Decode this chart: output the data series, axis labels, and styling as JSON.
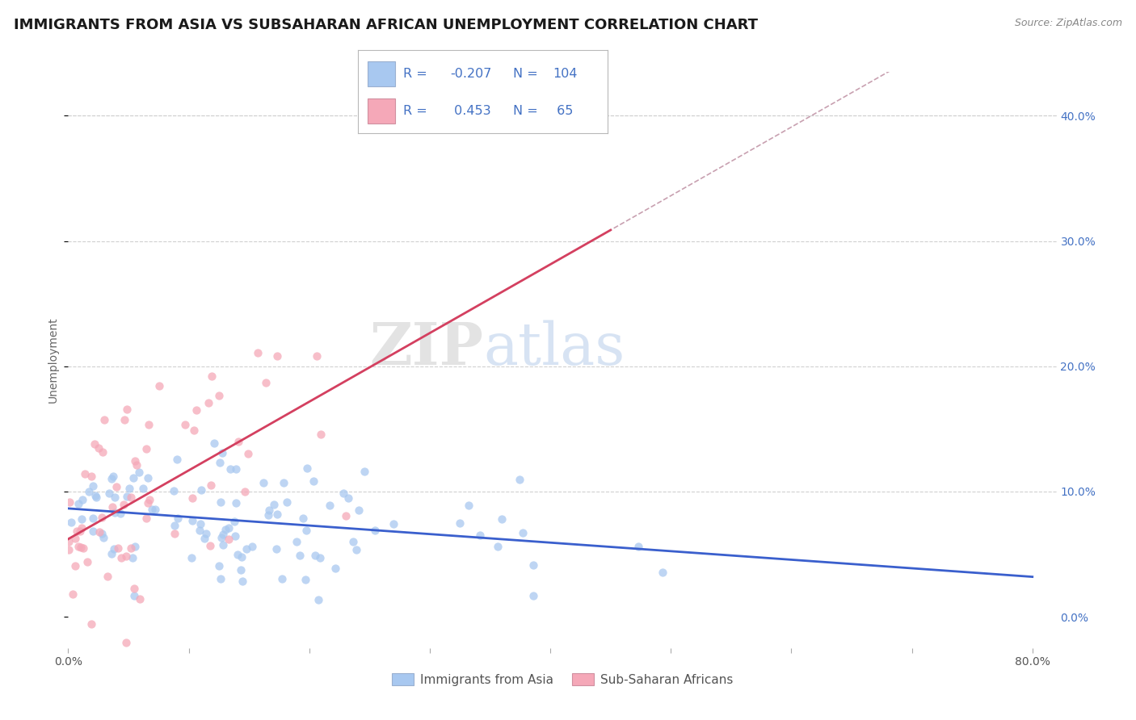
{
  "title": "IMMIGRANTS FROM ASIA VS SUBSAHARAN AFRICAN UNEMPLOYMENT CORRELATION CHART",
  "source": "Source: ZipAtlas.com",
  "ylabel": "Unemployment",
  "xlim": [
    0.0,
    0.82
  ],
  "ylim": [
    -0.025,
    0.435
  ],
  "ytick_vals": [
    0.0,
    0.1,
    0.2,
    0.3,
    0.4
  ],
  "ytick_labels_right": [
    "0.0%",
    "10.0%",
    "20.0%",
    "30.0%",
    "40.0%"
  ],
  "xtick_vals": [
    0.0,
    0.1,
    0.2,
    0.3,
    0.4,
    0.5,
    0.6,
    0.7,
    0.8
  ],
  "xtick_labels": [
    "0.0%",
    "",
    "",
    "",
    "",
    "",
    "",
    "",
    "80.0%"
  ],
  "blue_R": -0.207,
  "blue_N": 104,
  "pink_R": 0.453,
  "pink_N": 65,
  "blue_scatter_color": "#a8c8f0",
  "pink_scatter_color": "#f5a8b8",
  "blue_line_color": "#3a5fcd",
  "pink_line_color": "#d44060",
  "dashed_line_color": "#c8a0b0",
  "background_color": "#ffffff",
  "grid_color": "#d0d0d0",
  "title_fontsize": 13,
  "label_fontsize": 10,
  "tick_fontsize": 10,
  "legend_text_color": "#4472c4",
  "watermark_text": "ZIPatlas",
  "blue_seed": 12,
  "pink_seed": 5
}
